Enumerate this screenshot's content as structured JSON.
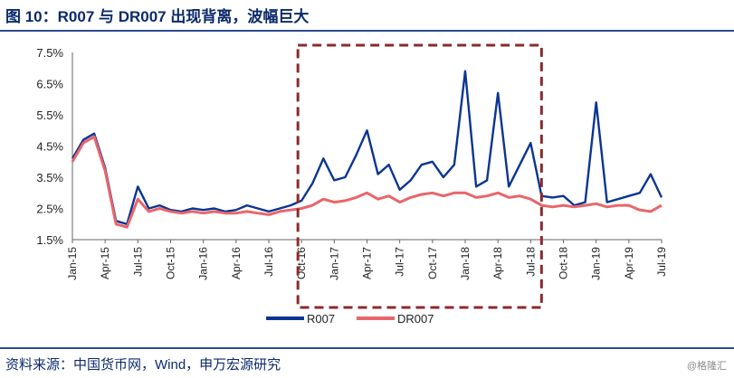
{
  "title": "图 10：R007 与 DR007 出现背离，波幅巨大",
  "source": "资料来源：中国货币网，Wind，申万宏源研究",
  "watermark": "@格隆汇",
  "colors": {
    "r007": "#0b3592",
    "dr007": "#e8666a",
    "frame": "#8b2b2b",
    "rule": "#2b4a8b"
  },
  "chart_data": {
    "type": "line",
    "ylim": [
      1.5,
      7.5
    ],
    "yticks": [
      "1.5%",
      "2.5%",
      "3.5%",
      "4.5%",
      "5.5%",
      "6.5%",
      "7.5%"
    ],
    "yticks_values": [
      1.5,
      2.5,
      3.5,
      4.5,
      5.5,
      6.5,
      7.5
    ],
    "xticks": [
      "Jan-15",
      "Apr-15",
      "Jul-15",
      "Oct-15",
      "Jan-16",
      "Apr-16",
      "Jul-16",
      "Oct-16",
      "Jan-17",
      "Apr-17",
      "Jul-17",
      "Oct-17",
      "Jan-18",
      "Apr-18",
      "Jul-18",
      "Oct-18",
      "Jan-19",
      "Apr-19",
      "Jul-19"
    ],
    "x": [
      "2015-01",
      "2015-02",
      "2015-03",
      "2015-04",
      "2015-05",
      "2015-06",
      "2015-07",
      "2015-08",
      "2015-09",
      "2015-10",
      "2015-11",
      "2015-12",
      "2016-01",
      "2016-02",
      "2016-03",
      "2016-04",
      "2016-05",
      "2016-06",
      "2016-07",
      "2016-08",
      "2016-09",
      "2016-10",
      "2016-11",
      "2016-12",
      "2017-01",
      "2017-02",
      "2017-03",
      "2017-04",
      "2017-05",
      "2017-06",
      "2017-07",
      "2017-08",
      "2017-09",
      "2017-10",
      "2017-11",
      "2017-12",
      "2018-01",
      "2018-02",
      "2018-03",
      "2018-04",
      "2018-05",
      "2018-06",
      "2018-07",
      "2018-08",
      "2018-09",
      "2018-10",
      "2018-11",
      "2018-12",
      "2019-01",
      "2019-02",
      "2019-03",
      "2019-04",
      "2019-05",
      "2019-06",
      "2019-07"
    ],
    "series": [
      {
        "name": "R007",
        "values": [
          4.1,
          4.7,
          4.9,
          3.8,
          2.1,
          2.0,
          3.2,
          2.5,
          2.6,
          2.45,
          2.4,
          2.5,
          2.45,
          2.5,
          2.4,
          2.45,
          2.6,
          2.5,
          2.4,
          2.5,
          2.6,
          2.75,
          3.3,
          4.1,
          3.4,
          3.5,
          4.2,
          5.0,
          3.6,
          3.9,
          3.1,
          3.4,
          3.9,
          4.0,
          3.5,
          3.9,
          6.9,
          3.2,
          3.4,
          6.2,
          3.2,
          3.9,
          4.6,
          2.9,
          2.85,
          2.9,
          2.6,
          2.7,
          5.9,
          2.7,
          2.8,
          2.9,
          3.0,
          3.6,
          2.85
        ]
      },
      {
        "name": "DR007",
        "values": [
          4.0,
          4.6,
          4.8,
          3.7,
          2.0,
          1.9,
          2.8,
          2.4,
          2.5,
          2.4,
          2.35,
          2.4,
          2.35,
          2.4,
          2.35,
          2.35,
          2.4,
          2.35,
          2.3,
          2.4,
          2.45,
          2.5,
          2.6,
          2.8,
          2.7,
          2.75,
          2.85,
          3.0,
          2.8,
          2.9,
          2.7,
          2.85,
          2.95,
          3.0,
          2.9,
          3.0,
          3.0,
          2.85,
          2.9,
          3.0,
          2.85,
          2.9,
          2.8,
          2.6,
          2.55,
          2.6,
          2.55,
          2.6,
          2.65,
          2.55,
          2.6,
          2.6,
          2.45,
          2.4,
          2.6
        ]
      }
    ],
    "legend_position": "bottom",
    "annotation": "dashed frame Oct-16 to Jul-18"
  }
}
